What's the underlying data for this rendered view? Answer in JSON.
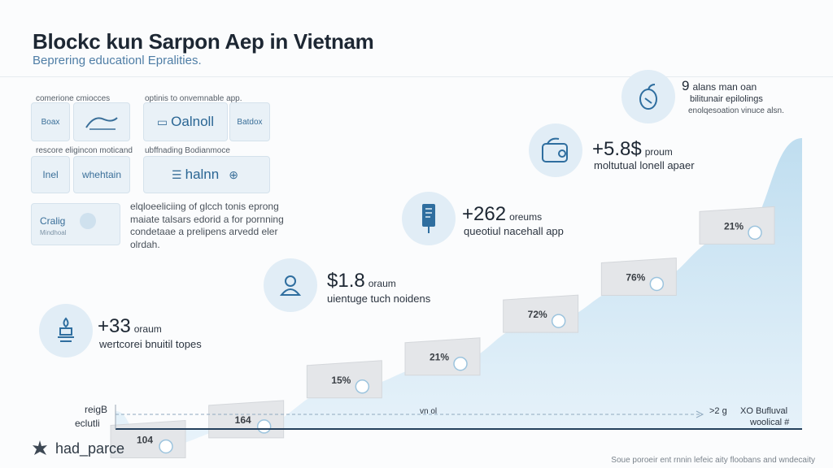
{
  "header": {
    "title": "Blockc kun Sarpon Aep in Vietnam",
    "subtitle": "Beprering educationl Epralities."
  },
  "left_panel": {
    "row1_left_label": "comerione cmiocces",
    "row1_right_label": "optinis to onvemnable app.",
    "row2_left_label": "rescore eligincon moticand",
    "row2_right_label": "ubffnading Bodianmoce",
    "tiles": {
      "t1": "Boax",
      "t3": "Oalnoll",
      "t4": "Batdox",
      "t5": "Inel",
      "t6": "whehtain",
      "t7": "halnn",
      "t8": "Cralig",
      "t8_sub": "Mindhoal"
    },
    "description": "elqloeeliciing of glcch tonis eprong maiate talsars edorid a for pornning condetaae a prelipens arvedd eler olrdah."
  },
  "milestones": [
    {
      "value": "+33",
      "unit": "oraum",
      "caption": "wertcorei bnuitil topes",
      "icon": "lamp-icon"
    },
    {
      "value": "$1.8",
      "unit": "oraum",
      "caption": "uientuge tuch noidens",
      "icon": "user-icon"
    },
    {
      "value": "+262",
      "unit": "oreums",
      "caption": "queotiul nacehall app",
      "icon": "phone-icon"
    },
    {
      "value": "+5.8$",
      "unit": "proum",
      "caption": "moltutual lonell apaer",
      "icon": "wallet-icon"
    },
    {
      "value": "9",
      "unit": "alans man oan",
      "caption": "bilitunair epilolings",
      "caption2": "enolqesoation vinuce alsn.",
      "icon": "fruit-icon"
    }
  ],
  "chart_data": {
    "type": "area",
    "categories": [
      "104",
      "164",
      "15%",
      "21%",
      "72%",
      "76%",
      "21%"
    ],
    "values": [
      3,
      10,
      24,
      32,
      47,
      60,
      78
    ],
    "ylim": [
      0,
      100
    ],
    "xlabel": "",
    "ylabel": "",
    "y_axis_label_line1": "reigB",
    "y_axis_label_line2": "eclutli",
    "x_mid_label": "vn ol",
    "x_right_marker": ">2 g",
    "x_right_label_line1": "XO Bufluval",
    "x_right_label_line2": "woolical #",
    "color_fill": "#bcdcef",
    "color_axis": "#24405c",
    "grid": false
  },
  "footer": {
    "logo_text": "had_parce",
    "source": "Soue poroeir ent rnnin lefeic aity floobans and wndecaity"
  },
  "colors": {
    "accent": "#4f7ea6",
    "tile_bg": "#e9f1f7",
    "icon_bg": "#e1edf6"
  }
}
